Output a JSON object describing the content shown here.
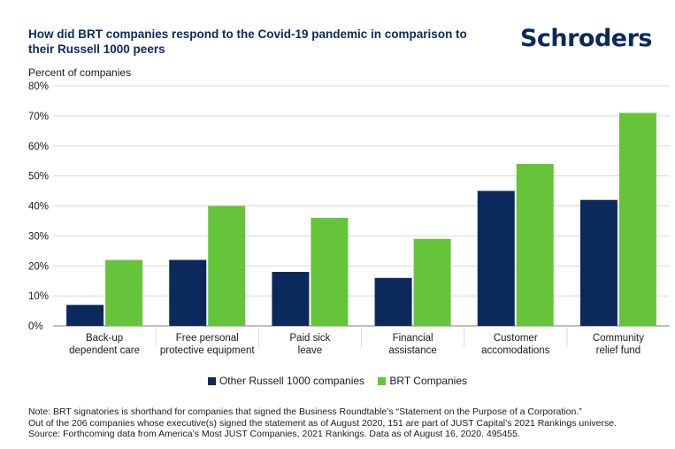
{
  "header": {
    "title": "How did BRT companies respond to the Covid-19 pandemic in comparison to their Russell 1000 peers",
    "logo": "Schroders"
  },
  "colors": {
    "series_other": "#0b2a5b",
    "series_brt": "#66c43a",
    "grid": "#d9d9d9",
    "axis": "#7f7f7f"
  },
  "chart_data": {
    "type": "bar",
    "title": "How did BRT companies respond to the Covid-19 pandemic in comparison to their Russell 1000 peers",
    "ylabel": "Percent of companies",
    "xlabel": "",
    "ylim": [
      0,
      80
    ],
    "yticks": [
      0,
      10,
      20,
      30,
      40,
      50,
      60,
      70,
      80
    ],
    "ytick_labels": [
      "0%",
      "10%",
      "20%",
      "30%",
      "40%",
      "50%",
      "60%",
      "70%",
      "80%"
    ],
    "grid": true,
    "legend_position": "bottom",
    "categories": [
      [
        "Back-up",
        "dependent care"
      ],
      [
        "Free personal",
        "protective equipment"
      ],
      [
        "Paid sick",
        "leave"
      ],
      [
        "Financial",
        "assistance"
      ],
      [
        "Customer",
        "accomodations"
      ],
      [
        "Community",
        "relief fund"
      ]
    ],
    "series": [
      {
        "name": "Other Russell 1000 companies",
        "values": [
          7,
          22,
          18,
          16,
          45,
          42
        ]
      },
      {
        "name": "BRT Companies",
        "values": [
          22,
          40,
          36,
          29,
          54,
          71
        ]
      }
    ]
  },
  "notes": [
    "Note: BRT signatories is shorthand for companies that signed the Business Roundtable’s “Statement on the Purpose of a Corporation.”",
    "Out of the 206 companies whose executive(s) signed the statement as of August 2020, 151 are part of JUST Capital’s 2021 Rankings universe.",
    "Source: Forthcoming data from America’s Most JUST Companies, 2021 Rankings. Data as of August 16, 2020. 495455."
  ]
}
